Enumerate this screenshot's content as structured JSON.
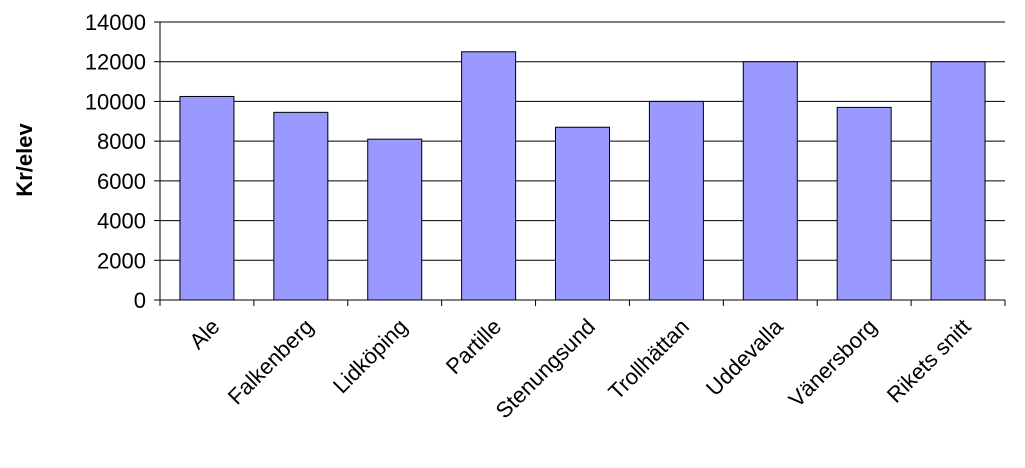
{
  "chart_data": {
    "type": "bar",
    "title": "",
    "xlabel": "",
    "ylabel": "Kr/elev",
    "ylim": [
      0,
      14000
    ],
    "yticks": [
      0,
      2000,
      4000,
      6000,
      8000,
      10000,
      12000,
      14000
    ],
    "grid": true,
    "legend": "none",
    "categories": [
      "Ale",
      "Falkenberg",
      "Lidköping",
      "Partille",
      "Stenungsund",
      "Trollhättan",
      "Uddevalla",
      "Vänersborg",
      "Rikets snitt"
    ],
    "values": [
      10250,
      9450,
      8100,
      12500,
      8700,
      10000,
      12000,
      9700,
      12000
    ],
    "colors": {
      "bar_fill": "#9999ff",
      "bar_stroke": "#000000",
      "gridline": "#000000",
      "axis": "#000000"
    }
  }
}
